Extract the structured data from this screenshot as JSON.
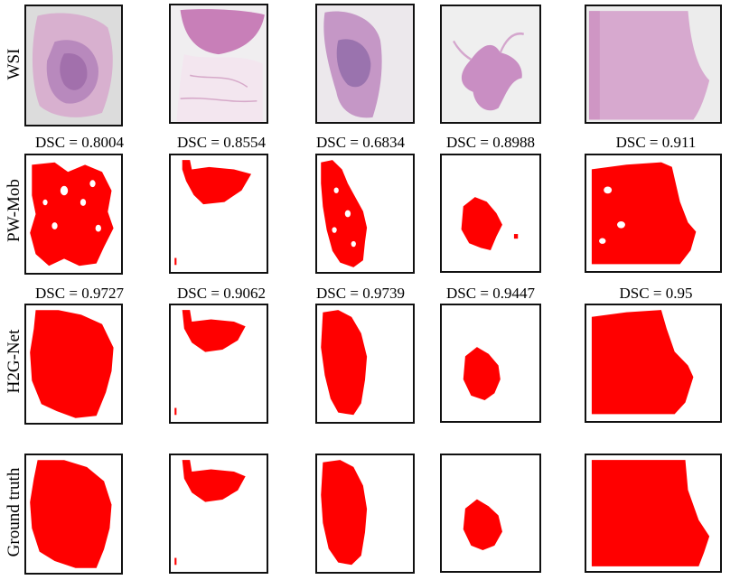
{
  "row_labels": {
    "wsi": "WSI",
    "pw_mob": "PW-Mob",
    "h2g_net": "H2G-Net",
    "ground_truth": "Ground truth"
  },
  "pw_mob_scores": [
    "DSC = 0.8004",
    "DSC = 0.8554",
    "DSC = 0.6834",
    "DSC = 0.8988",
    "DSC = 0.911"
  ],
  "h2g_net_scores": [
    "DSC = 0.9727",
    "DSC = 0.9062",
    "DSC = 0.9739",
    "DSC = 0.9447",
    "DSC = 0.95"
  ],
  "colors": {
    "segmentation": "#ff0000",
    "wsi_background": "#dcdcdc",
    "tissue_pink": "#d9a5c9",
    "tissue_dark": "#a06fb0",
    "frame": "#111111"
  }
}
